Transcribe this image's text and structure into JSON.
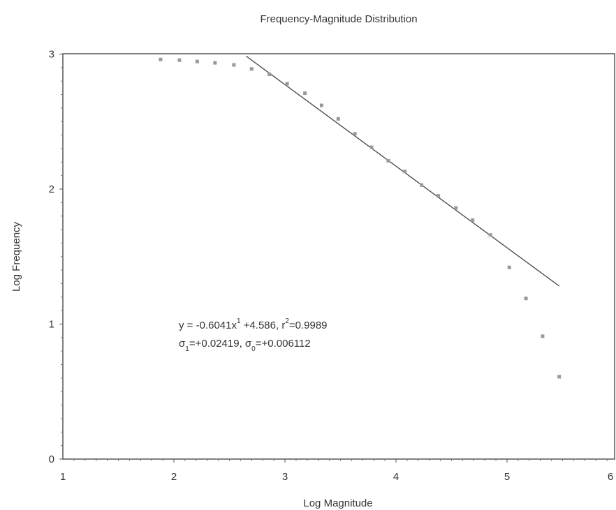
{
  "chart_data": {
    "type": "scatter",
    "title": "Frequency-Magnitude Distribution",
    "xlabel": "Log Magnitude",
    "ylabel": "Log Frequency",
    "xlim": [
      1,
      6
    ],
    "ylim": [
      0,
      3
    ],
    "x_ticks": [
      "1",
      "2",
      "3",
      "4",
      "5",
      "6"
    ],
    "y_ticks": [
      "0",
      "1",
      "2",
      "3"
    ],
    "grid": false,
    "series": [
      {
        "points": [
          [
            1.88,
            2.96
          ],
          [
            2.05,
            2.955
          ],
          [
            2.21,
            2.945
          ],
          [
            2.37,
            2.935
          ],
          [
            2.54,
            2.92
          ],
          [
            2.7,
            2.89
          ],
          [
            2.86,
            2.85
          ],
          [
            3.02,
            2.78
          ],
          [
            3.18,
            2.71
          ],
          [
            3.33,
            2.62
          ],
          [
            3.48,
            2.52
          ],
          [
            3.63,
            2.41
          ],
          [
            3.78,
            2.31
          ],
          [
            3.93,
            2.21
          ],
          [
            4.08,
            2.13
          ],
          [
            4.23,
            2.03
          ],
          [
            4.38,
            1.95
          ],
          [
            4.54,
            1.86
          ],
          [
            4.69,
            1.77
          ],
          [
            4.85,
            1.66
          ],
          [
            5.02,
            1.42
          ],
          [
            5.17,
            1.19
          ],
          [
            5.32,
            0.91
          ],
          [
            5.47,
            0.61
          ]
        ]
      }
    ],
    "fit_line": {
      "slope": -0.6041,
      "intercept": 4.586,
      "x_range": [
        2.65,
        5.47
      ]
    },
    "annotation": {
      "line1_y": "y = -0.6041x",
      "line1_sup1": "1",
      "line1_mid": " +4.586, r",
      "line1_sup2": "2",
      "line1_end": "=0.9989",
      "line2_sigma1": "σ",
      "line2_sub1": "1",
      "line2_mid": "=+0.02419, σ",
      "line2_sub2": "0",
      "line2_end": "=+0.006112"
    },
    "colors": {
      "axis": "#555555",
      "points": "#999999",
      "fit_line": "#444444"
    }
  }
}
